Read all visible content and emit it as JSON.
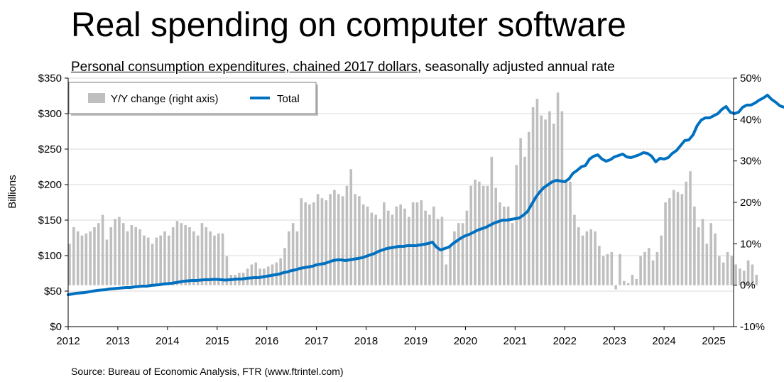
{
  "title": "Real spending on computer software",
  "subtitle_underlined": "Personal consumption expenditures, chained 2017 dollars",
  "subtitle_rest": ", seasonally adjusted annual rate",
  "source": "Source: Bureau of Economic Analysis, FTR (www.ftrintel.com)",
  "chart_data": {
    "type": "bar+line",
    "ylabel": "Billions",
    "left_axis": {
      "min": 0,
      "max": 350,
      "step": 50,
      "ticks": [
        "$0",
        "$50",
        "$100",
        "$150",
        "$200",
        "$250",
        "$300",
        "$350"
      ]
    },
    "right_axis": {
      "min": -10,
      "max": 50,
      "step": 10,
      "ticks": [
        "-10%",
        "0%",
        "10%",
        "20%",
        "30%",
        "40%",
        "50%"
      ]
    },
    "x_range": [
      2012,
      2025.4
    ],
    "x_ticks": [
      "2012",
      "2013",
      "2014",
      "2015",
      "2016",
      "2017",
      "2018",
      "2019",
      "2020",
      "2021",
      "2022",
      "2023",
      "2024",
      "2025"
    ],
    "legend": [
      {
        "name": "Y/Y change (right axis)",
        "color": "#bfbfbf",
        "kind": "bar"
      },
      {
        "name": "Total",
        "color": "#0070c0",
        "kind": "line"
      }
    ],
    "series": [
      {
        "name": "Y/Y change (right axis)",
        "axis": "right",
        "start": 2012.0,
        "step": 0.08333,
        "values": [
          10,
          14,
          13,
          12,
          12.5,
          13,
          14,
          15,
          17,
          11,
          14,
          16,
          16.5,
          15,
          13,
          14.5,
          14,
          13.5,
          12,
          11.5,
          10,
          11.5,
          12,
          13,
          12,
          14,
          15.5,
          15,
          14.5,
          14,
          13,
          12,
          15,
          14,
          13,
          12,
          12.5,
          12.5,
          7,
          2.5,
          2.5,
          3,
          3,
          4,
          5,
          5.5,
          4,
          4,
          4.5,
          5,
          5.5,
          6.5,
          9,
          13,
          15,
          13,
          21,
          20,
          19.5,
          20,
          22,
          21,
          20.5,
          22,
          23,
          22,
          21.5,
          24,
          28,
          22,
          21.5,
          19.5,
          19,
          17.5,
          17,
          16,
          20,
          18,
          17,
          19,
          19.5,
          18.5,
          16.5,
          20,
          20,
          20.5,
          18,
          17,
          19,
          16,
          16.5,
          5,
          9.5,
          13,
          15,
          15,
          18,
          24,
          25.5,
          25,
          24,
          24,
          31,
          23.5,
          20,
          19,
          19,
          15,
          29,
          35.5,
          31,
          37,
          43,
          45,
          41,
          40,
          42,
          39,
          46.5,
          42,
          25,
          25,
          17,
          14,
          12,
          13,
          13.5,
          13,
          9.5,
          7,
          7.5,
          8,
          -1,
          7.5,
          1,
          0.5,
          2.5,
          1.5,
          7,
          8,
          9,
          6,
          8,
          12,
          20,
          21,
          23,
          22.5,
          22,
          25,
          27.5,
          19,
          14,
          16,
          10,
          15,
          12.5,
          7,
          5.5,
          8,
          7,
          5,
          4,
          3.5,
          6,
          5,
          2.5
        ]
      },
      {
        "name": "Total",
        "axis": "left",
        "start": 2012.0,
        "step": 0.08333,
        "values": [
          45,
          46,
          47,
          47.5,
          48,
          49,
          50,
          51,
          51.5,
          52,
          53,
          53.5,
          54,
          54.5,
          55,
          55,
          56,
          56.5,
          57,
          57,
          58,
          58.5,
          59,
          60,
          60.5,
          61,
          62,
          63,
          64,
          64.5,
          65,
          65,
          65.5,
          66,
          66,
          66.5,
          66.5,
          66,
          65.5,
          66,
          66.5,
          67,
          67,
          68,
          68.5,
          69,
          69,
          70,
          71,
          72,
          73,
          74,
          76,
          77,
          79,
          80,
          82,
          83,
          84,
          85,
          87,
          88,
          89,
          91,
          93,
          94,
          94,
          93,
          94,
          95,
          96,
          97,
          99,
          101,
          103,
          106,
          108,
          110,
          111,
          112,
          113,
          113,
          114,
          114,
          114,
          115,
          116,
          117,
          119,
          112,
          108,
          110,
          112,
          117,
          121,
          125,
          128,
          130,
          133,
          136,
          138,
          140,
          143,
          146,
          148,
          150,
          150,
          151,
          152,
          153,
          157,
          162,
          172,
          182,
          190,
          196,
          200,
          204,
          206,
          205,
          204,
          208,
          216,
          220,
          225,
          227,
          236,
          240,
          242,
          236,
          233,
          235,
          239,
          241,
          243,
          239,
          238,
          240,
          242,
          245,
          244,
          240,
          232,
          237,
          236,
          238,
          244,
          248,
          255,
          262,
          263,
          270,
          283,
          291,
          294,
          294,
          297,
          300,
          306,
          310,
          302,
          300,
          302,
          309,
          312,
          312,
          315,
          319,
          322,
          326,
          320,
          316,
          311,
          309
        ]
      }
    ]
  }
}
